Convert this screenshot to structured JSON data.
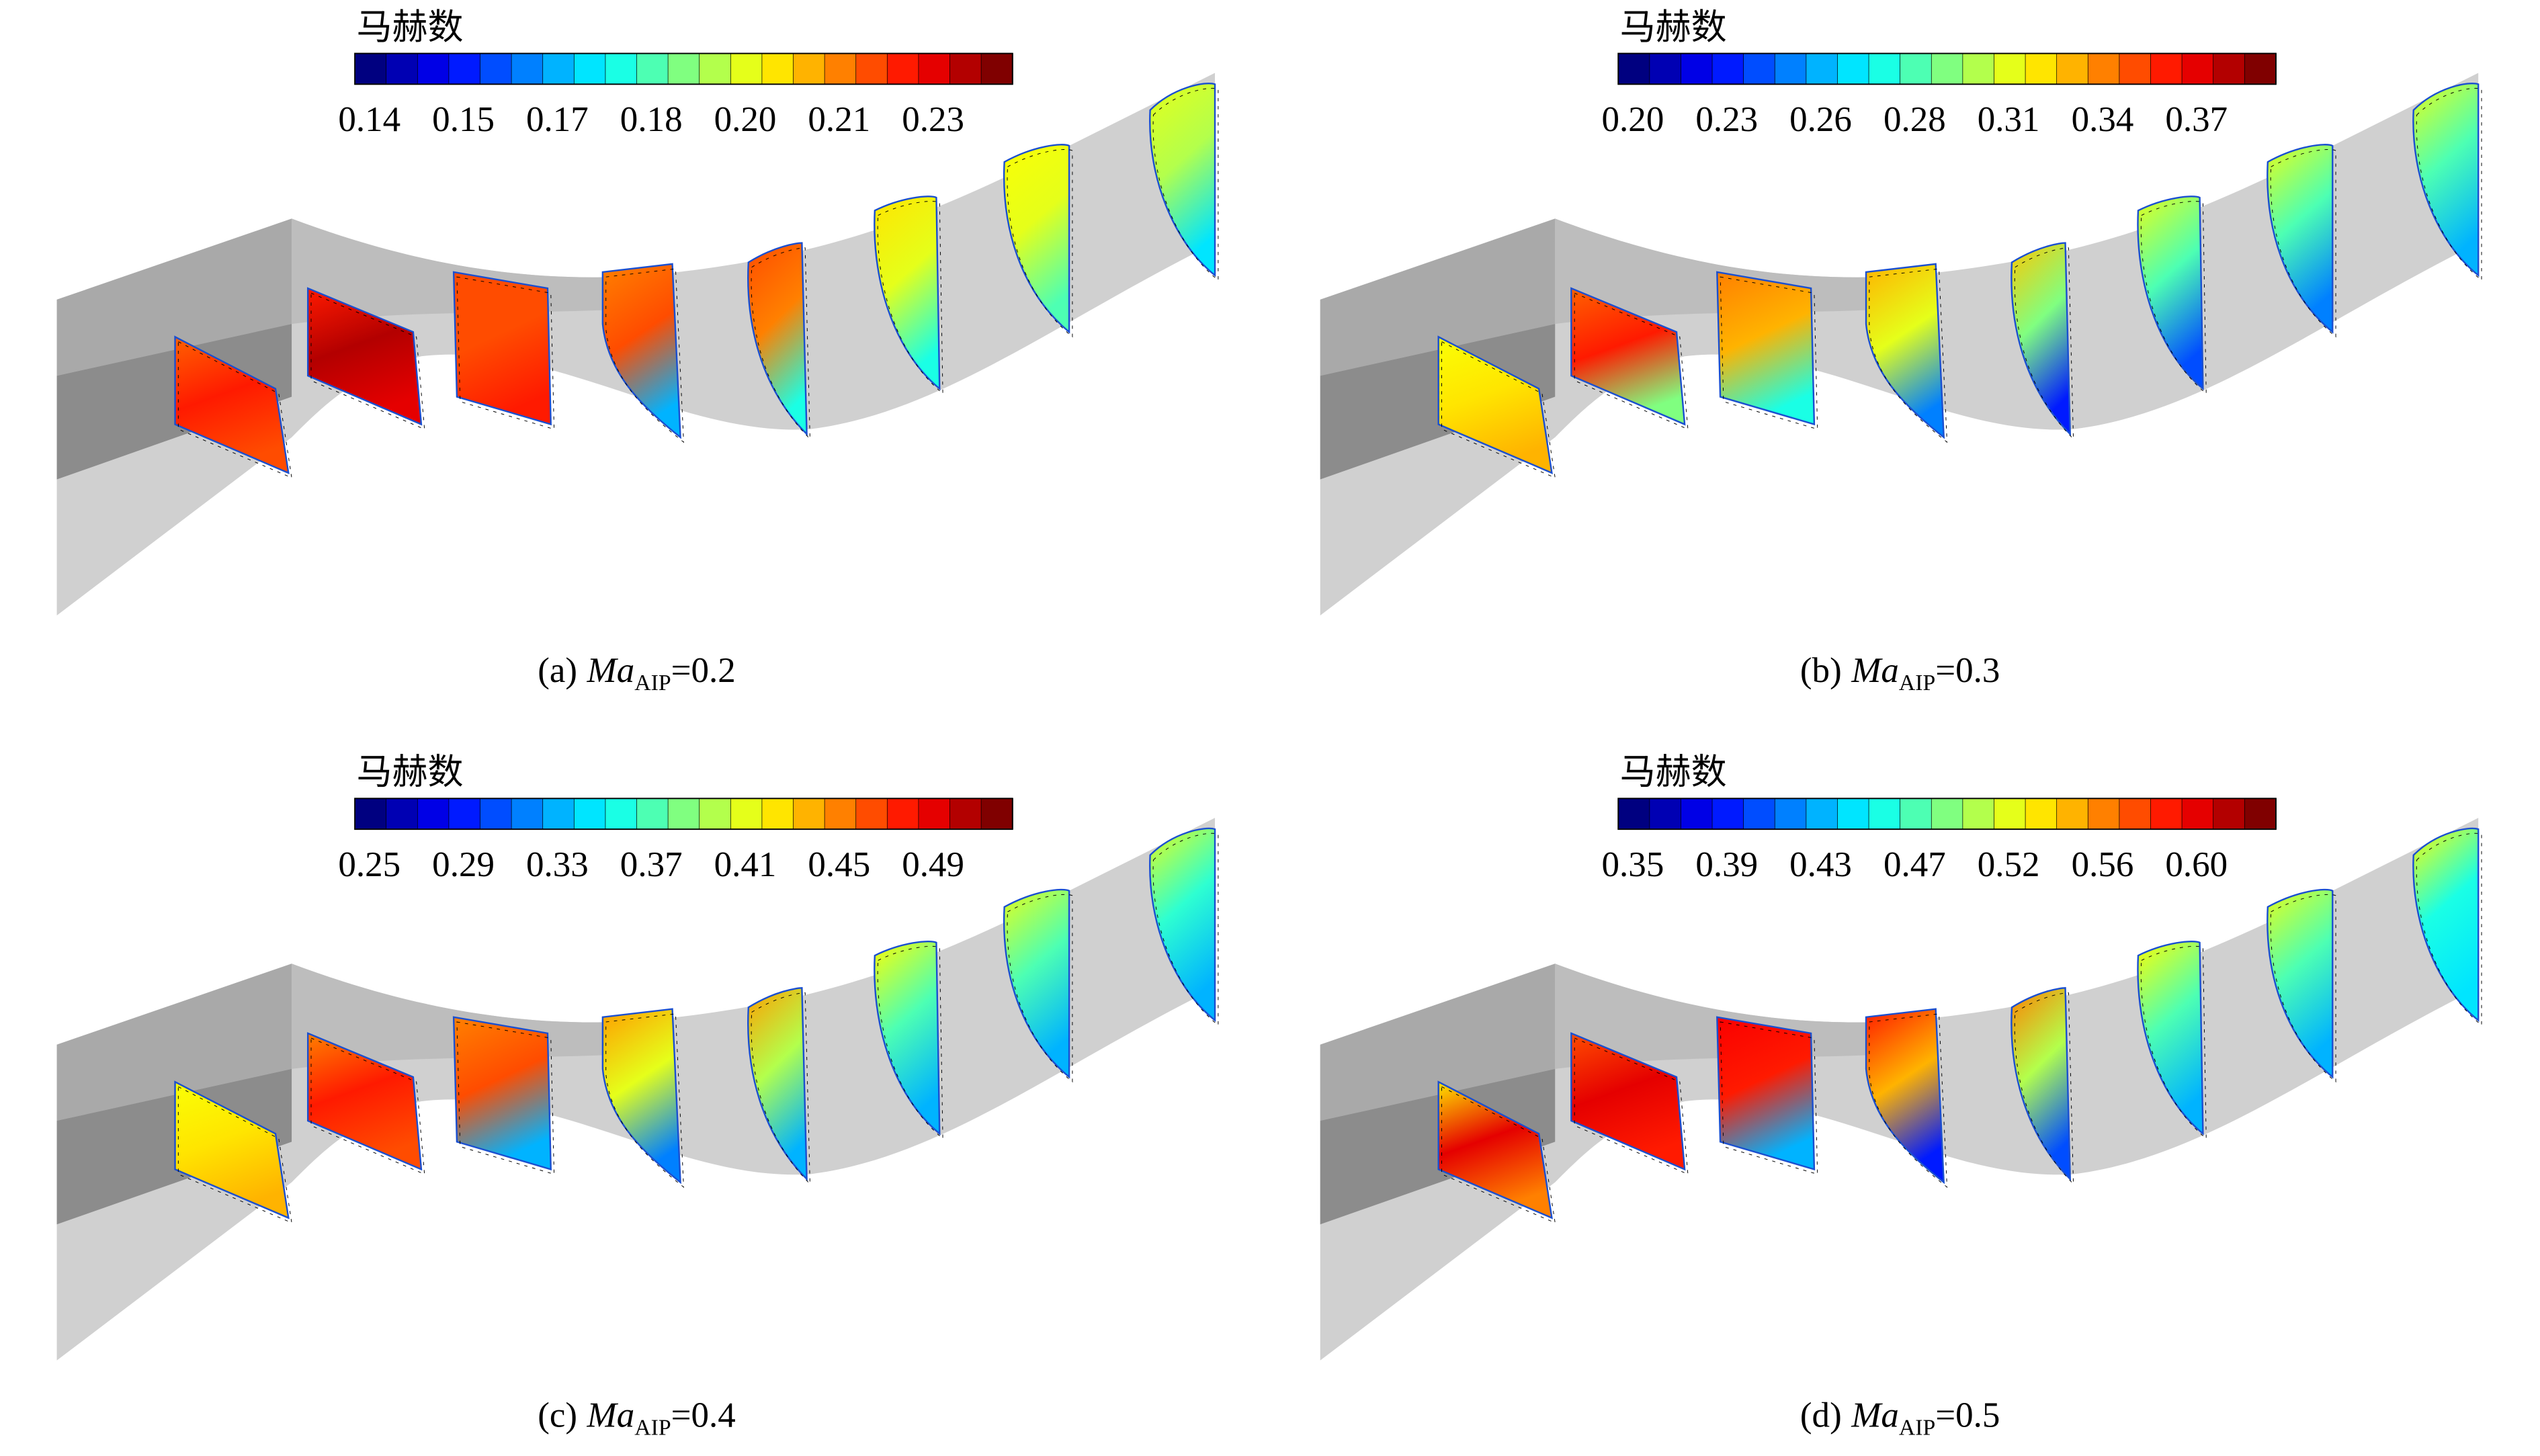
{
  "panels": [
    {
      "colorbar": {
        "title": "马赫数",
        "ticks": [
          "0.14",
          "0.15",
          "0.17",
          "0.18",
          "0.20",
          "0.21",
          "0.23"
        ]
      },
      "caption": {
        "label": "(a)",
        "symbol": "Ma",
        "subscript": "AIP",
        "value": "=0.2"
      }
    },
    {
      "colorbar": {
        "title": "马赫数",
        "ticks": [
          "0.20",
          "0.23",
          "0.26",
          "0.28",
          "0.31",
          "0.34",
          "0.37"
        ]
      },
      "caption": {
        "label": "(b)",
        "symbol": "Ma",
        "subscript": "AIP",
        "value": "=0.3"
      }
    },
    {
      "colorbar": {
        "title": "马赫数",
        "ticks": [
          "0.25",
          "0.29",
          "0.33",
          "0.37",
          "0.41",
          "0.45",
          "0.49"
        ]
      },
      "caption": {
        "label": "(c)",
        "symbol": "Ma",
        "subscript": "AIP",
        "value": "=0.4"
      }
    },
    {
      "colorbar": {
        "title": "马赫数",
        "ticks": [
          "0.35",
          "0.39",
          "0.43",
          "0.47",
          "0.52",
          "0.56",
          "0.60"
        ]
      },
      "caption": {
        "label": "(d)",
        "symbol": "Ma",
        "subscript": "AIP",
        "value": "=0.5"
      }
    }
  ]
}
